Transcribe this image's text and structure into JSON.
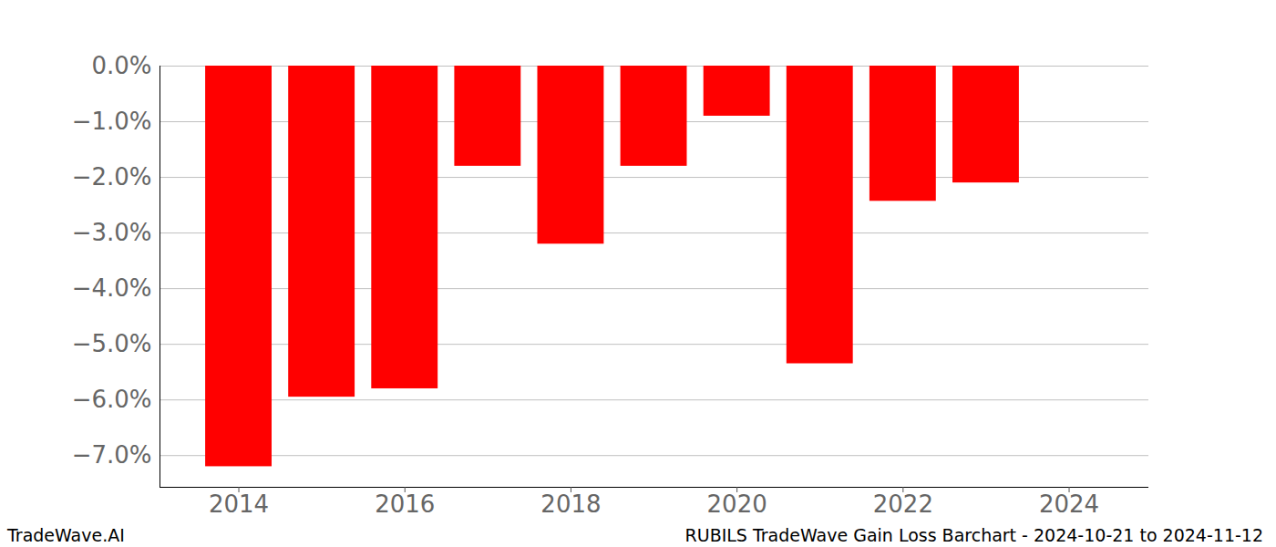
{
  "chart_data": {
    "type": "bar",
    "title": "RUBILS TradeWave Gain Loss Barchart - 2024-10-21 to 2024-11-12",
    "annotations": [
      "TradeWave.AI"
    ],
    "x": [
      2014,
      2015,
      2016,
      2017,
      2018,
      2019,
      2020,
      2021,
      2022,
      2023
    ],
    "values": [
      -7.2,
      -5.95,
      -5.8,
      -1.8,
      -3.2,
      -1.8,
      -0.9,
      -5.35,
      -2.43,
      -2.1
    ],
    "color": "#ff0000",
    "xlim": [
      2013.05,
      2024.96
    ],
    "xticks": [
      2014,
      2016,
      2018,
      2020,
      2022,
      2024
    ],
    "ylim": [
      -7.57,
      0
    ],
    "yticks": [
      {
        "value": 0,
        "label": "0.0%"
      },
      {
        "value": -1,
        "label": "−1.0%"
      },
      {
        "value": -2,
        "label": "−2.0%"
      },
      {
        "value": -3,
        "label": "−3.0%"
      },
      {
        "value": -4,
        "label": "−4.0%"
      },
      {
        "value": -5,
        "label": "−5.0%"
      },
      {
        "value": -6,
        "label": "−6.0%"
      },
      {
        "value": -7,
        "label": "−7.0%"
      }
    ],
    "grid": true
  }
}
